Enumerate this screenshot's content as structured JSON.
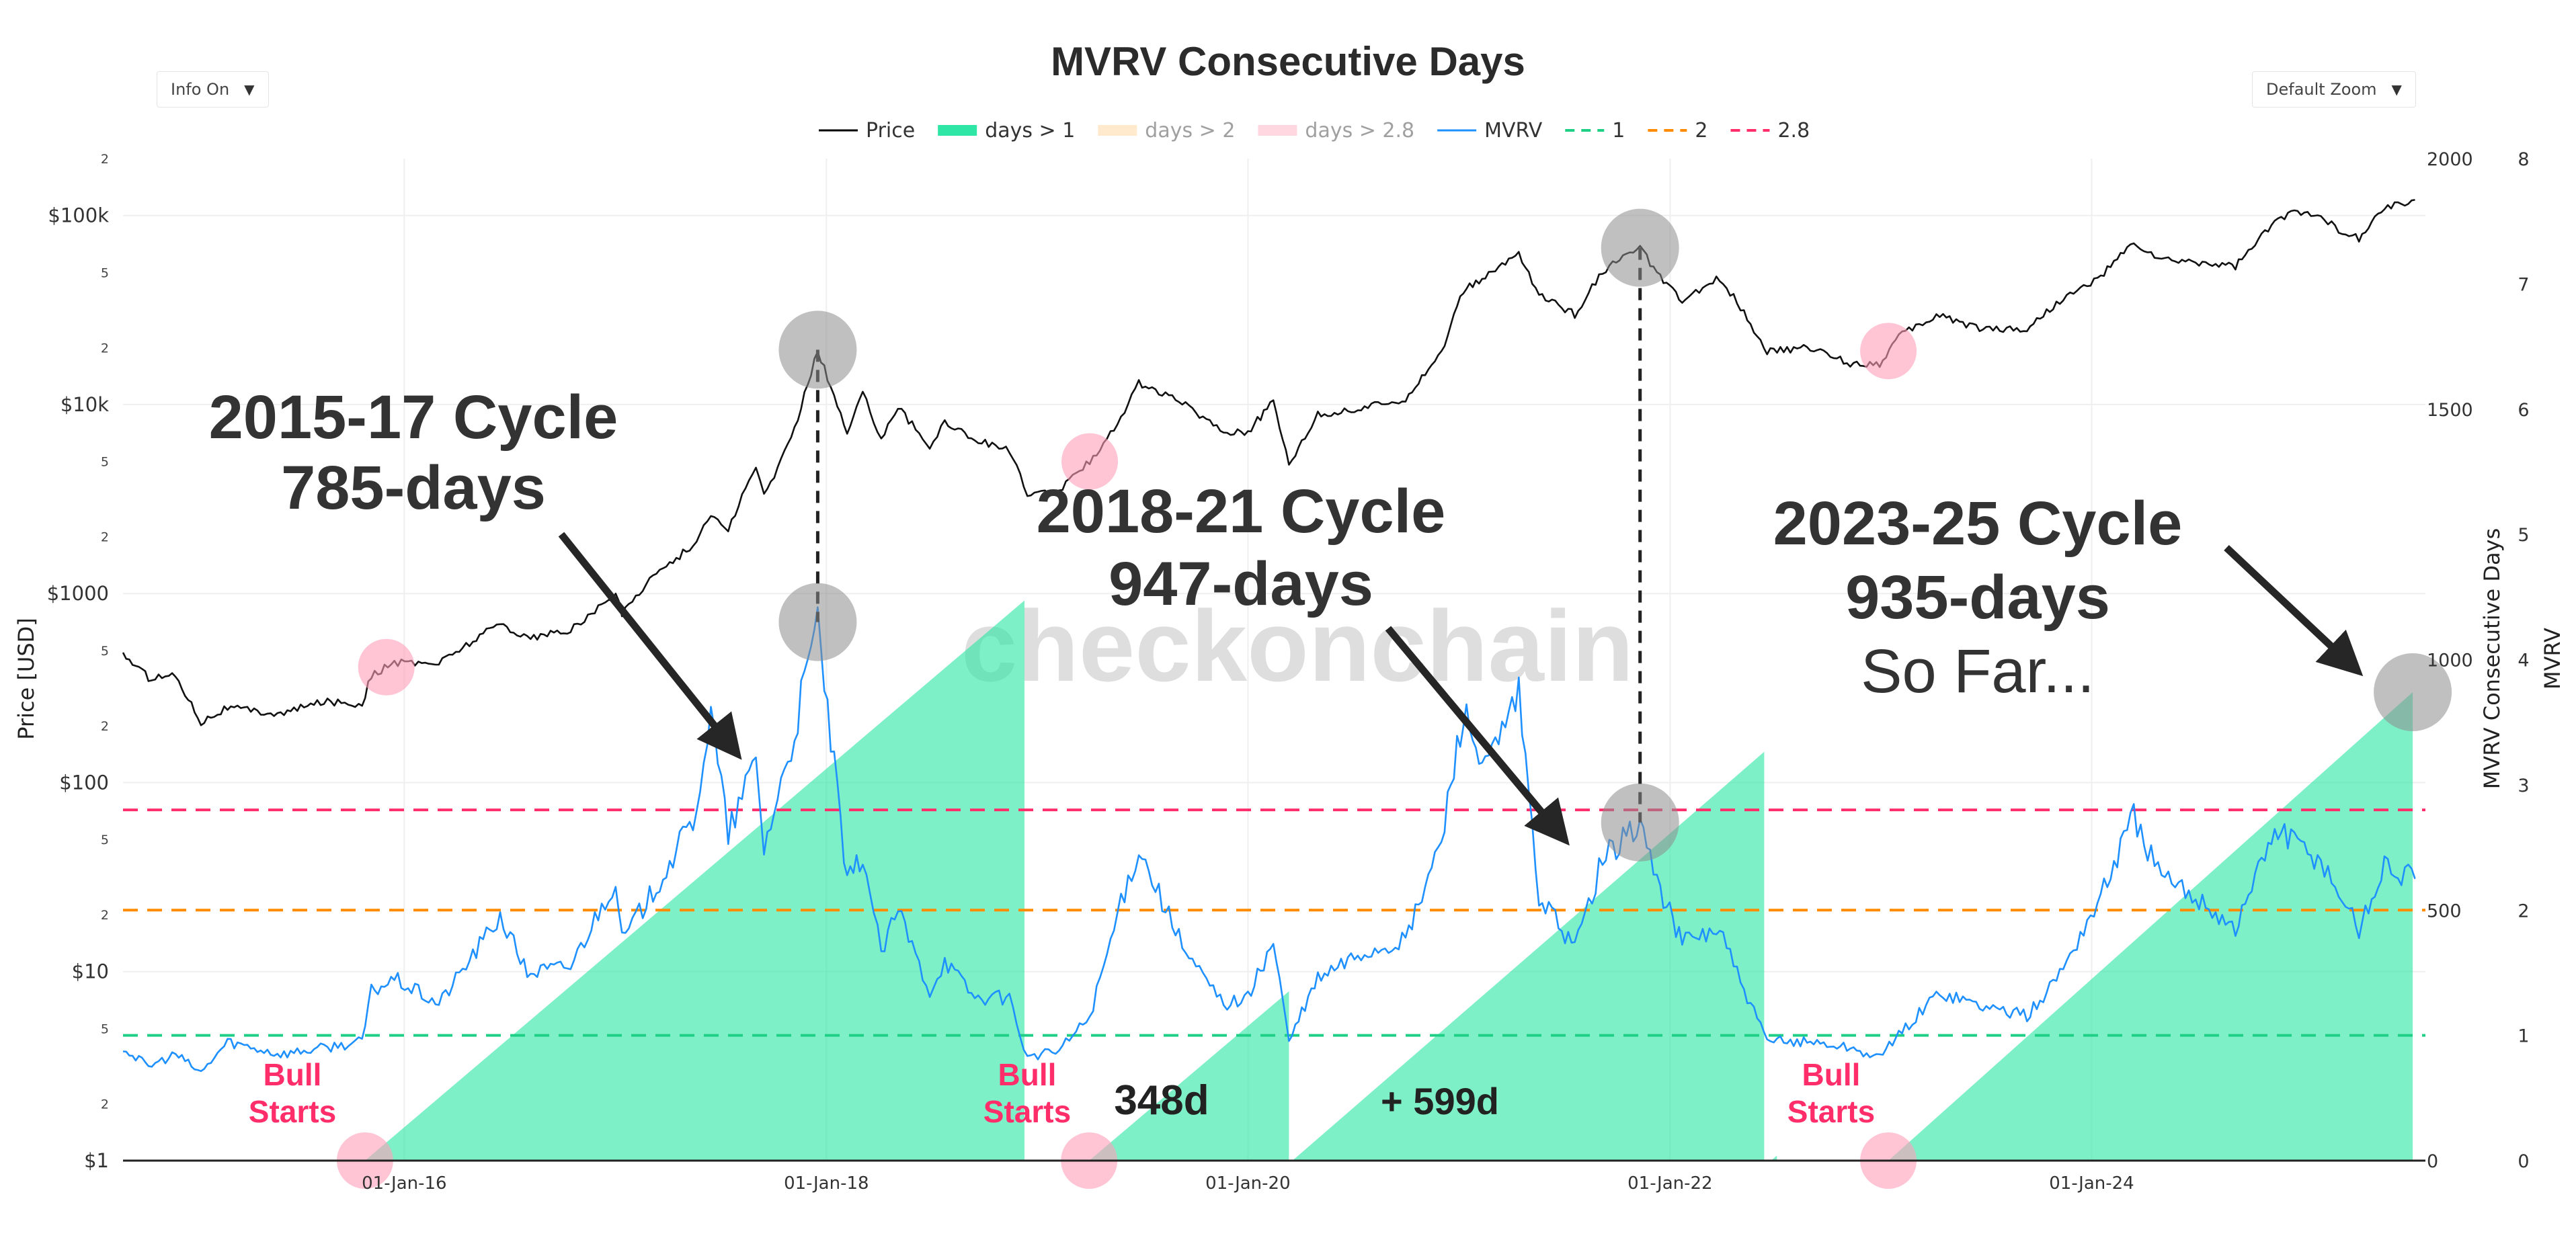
{
  "chart_data": {
    "type": "line",
    "title": "MVRV Consecutive Days",
    "controls": {
      "info": "Info On",
      "zoom": "Default Zoom"
    },
    "watermark": "checkonchain",
    "x_ticks": [
      "01-Jan-16",
      "01-Jan-18",
      "01-Jan-20",
      "01-Jan-22",
      "01-Jan-24"
    ],
    "x_range": [
      "2014-09-01",
      "2025-08-01"
    ],
    "legend": [
      {
        "label": "Price",
        "color": "#000000",
        "style": "line"
      },
      {
        "label": "days > 1",
        "color": "#2ee6a6",
        "style": "area"
      },
      {
        "label": "days > 2",
        "color": "#ffd8a6",
        "style": "area",
        "faded": true
      },
      {
        "label": "days > 2.8",
        "color": "#ffb6c9",
        "style": "area",
        "faded": true
      },
      {
        "label": "MVRV",
        "color": "#1e90ff",
        "style": "line"
      },
      {
        "label": "1",
        "color": "#1fcf86",
        "style": "dash"
      },
      {
        "label": "2",
        "color": "#ff8c00",
        "style": "dash"
      },
      {
        "label": "2.8",
        "color": "#ff2d6a",
        "style": "dash"
      }
    ],
    "y_price": {
      "label": "Price [USD]",
      "scale": "log",
      "range": [
        1,
        200000
      ],
      "major_ticks": [
        {
          "v": 1,
          "t": "$1"
        },
        {
          "v": 10,
          "t": "$10"
        },
        {
          "v": 100,
          "t": "$100"
        },
        {
          "v": 1000,
          "t": "$1000"
        },
        {
          "v": 10000,
          "t": "$10k"
        },
        {
          "v": 100000,
          "t": "$100k"
        }
      ],
      "minor_ticks": [
        {
          "v": 2,
          "t": "2"
        },
        {
          "v": 5,
          "t": "5"
        },
        {
          "v": 20,
          "t": "2"
        },
        {
          "v": 50,
          "t": "5"
        },
        {
          "v": 200,
          "t": "2"
        },
        {
          "v": 500,
          "t": "5"
        },
        {
          "v": 2000,
          "t": "2"
        },
        {
          "v": 5000,
          "t": "5"
        },
        {
          "v": 20000,
          "t": "2"
        },
        {
          "v": 50000,
          "t": "5"
        },
        {
          "v": 200000,
          "t": "2"
        }
      ]
    },
    "y_days": {
      "label": "MVRV Consecutive Days",
      "range": [
        0,
        2000
      ],
      "ticks": [
        {
          "v": 0,
          "t": "0"
        },
        {
          "v": 500,
          "t": "500"
        },
        {
          "v": 1000,
          "t": "1000"
        },
        {
          "v": 1500,
          "t": "1500"
        },
        {
          "v": 2000,
          "t": "2000"
        }
      ]
    },
    "y_mvrv": {
      "label": "MVRV",
      "range": [
        0,
        8
      ],
      "ticks": [
        {
          "v": 0,
          "t": "0"
        },
        {
          "v": 1,
          "t": "1"
        },
        {
          "v": 2,
          "t": "2"
        },
        {
          "v": 3,
          "t": "3"
        },
        {
          "v": 4,
          "t": "4"
        },
        {
          "v": 5,
          "t": "5"
        },
        {
          "v": 6,
          "t": "6"
        },
        {
          "v": 7,
          "t": "7"
        },
        {
          "v": 8,
          "t": "8"
        }
      ]
    },
    "thresholds": [
      {
        "value": 1,
        "color": "#1fcf86"
      },
      {
        "value": 2,
        "color": "#ff8c00"
      },
      {
        "value": 2.8,
        "color": "#ff2d6a"
      }
    ],
    "days_segments": [
      {
        "start": "2015-10-25",
        "end": "2018-12-10",
        "peak_days": 1118
      },
      {
        "start": "2019-04-01",
        "end": "2020-03-12",
        "peak_days": 338
      },
      {
        "start": "2020-03-18",
        "end": "2022-06-13",
        "peak_days": 816
      },
      {
        "start": "2022-06-25",
        "end": "2022-07-05",
        "peak_days": 10
      },
      {
        "start": "2023-01-14",
        "end": "2025-07-10",
        "peak_days": 935
      }
    ],
    "price_series": {
      "dates": [
        "2014-09-01",
        "2014-10-15",
        "2014-12-01",
        "2015-01-14",
        "2015-03-01",
        "2015-06-01",
        "2015-08-15",
        "2015-10-20",
        "2015-11-05",
        "2015-12-15",
        "2016-03-01",
        "2016-06-15",
        "2016-08-01",
        "2016-10-15",
        "2017-01-01",
        "2017-01-12",
        "2017-03-01",
        "2017-05-15",
        "2017-06-15",
        "2017-07-15",
        "2017-09-01",
        "2017-09-15",
        "2017-11-01",
        "2017-12-17",
        "2018-02-06",
        "2018-03-05",
        "2018-04-06",
        "2018-05-05",
        "2018-06-29",
        "2018-07-25",
        "2018-09-15",
        "2018-11-14",
        "2018-12-15",
        "2019-02-08",
        "2019-04-02",
        "2019-05-20",
        "2019-06-26",
        "2019-09-15",
        "2019-11-20",
        "2020-01-01",
        "2020-02-14",
        "2020-03-12",
        "2020-05-01",
        "2020-07-15",
        "2020-09-30",
        "2020-12-01",
        "2021-01-08",
        "2021-02-15",
        "2021-04-14",
        "2021-05-19",
        "2021-07-20",
        "2021-09-06",
        "2021-11-10",
        "2021-12-15",
        "2022-01-22",
        "2022-03-28",
        "2022-05-09",
        "2022-06-18",
        "2022-09-01",
        "2022-11-09",
        "2022-12-30",
        "2023-02-01",
        "2023-04-13",
        "2023-06-15",
        "2023-09-11",
        "2023-11-01",
        "2024-01-11",
        "2024-03-14",
        "2024-05-01",
        "2024-07-05",
        "2024-09-06",
        "2024-11-13",
        "2024-12-17",
        "2025-02-01",
        "2025-03-10",
        "2025-04-08",
        "2025-05-22",
        "2025-07-14"
      ],
      "values": [
        480,
        360,
        370,
        210,
        250,
        230,
        270,
        260,
        370,
        430,
        430,
        700,
        580,
        640,
        990,
        780,
        1200,
        1800,
        2600,
        2200,
        4700,
        3300,
        6500,
        19500,
        7000,
        11500,
        6700,
        9800,
        5900,
        8200,
        6500,
        5800,
        3300,
        3500,
        5000,
        8000,
        13000,
        10000,
        7200,
        7200,
        10300,
        4900,
        8800,
        9500,
        10800,
        19000,
        40000,
        47000,
        63500,
        38000,
        30000,
        51000,
        67500,
        47000,
        35000,
        47000,
        31000,
        19000,
        20000,
        16500,
        16500,
        23000,
        30000,
        25500,
        25000,
        34500,
        46000,
        71500,
        58000,
        56500,
        54000,
        92000,
        106000,
        102000,
        79000,
        76000,
        110000,
        121000
      ]
    },
    "mvrv_series": {
      "dates": [
        "2014-09-01",
        "2014-10-15",
        "2014-12-01",
        "2015-01-14",
        "2015-03-01",
        "2015-06-01",
        "2015-08-15",
        "2015-10-20",
        "2015-11-05",
        "2015-12-15",
        "2016-03-01",
        "2016-06-15",
        "2016-08-01",
        "2016-10-15",
        "2017-01-01",
        "2017-01-12",
        "2017-03-01",
        "2017-05-15",
        "2017-06-15",
        "2017-07-15",
        "2017-09-01",
        "2017-09-15",
        "2017-11-01",
        "2017-12-17",
        "2018-02-06",
        "2018-03-05",
        "2018-04-06",
        "2018-05-05",
        "2018-06-29",
        "2018-07-25",
        "2018-09-15",
        "2018-11-14",
        "2018-12-15",
        "2019-02-08",
        "2019-04-02",
        "2019-05-20",
        "2019-06-26",
        "2019-09-15",
        "2019-11-20",
        "2020-01-01",
        "2020-02-14",
        "2020-03-12",
        "2020-05-01",
        "2020-07-15",
        "2020-09-30",
        "2020-12-01",
        "2021-01-08",
        "2021-02-15",
        "2021-04-14",
        "2021-05-19",
        "2021-07-20",
        "2021-09-06",
        "2021-11-10",
        "2021-12-15",
        "2022-01-22",
        "2022-03-28",
        "2022-05-09",
        "2022-06-18",
        "2022-09-01",
        "2022-11-09",
        "2022-12-30",
        "2023-02-01",
        "2023-04-13",
        "2023-06-15",
        "2023-09-11",
        "2023-11-01",
        "2024-01-11",
        "2024-03-14",
        "2024-05-01",
        "2024-07-05",
        "2024-09-06",
        "2024-11-13",
        "2024-12-17",
        "2025-02-01",
        "2025-03-10",
        "2025-04-08",
        "2025-05-22",
        "2025-07-14"
      ],
      "values": [
        0.9,
        0.75,
        0.85,
        0.7,
        0.95,
        0.85,
        0.9,
        0.95,
        1.35,
        1.45,
        1.25,
        1.95,
        1.5,
        1.55,
        2.25,
        1.75,
        2.1,
        2.7,
        3.55,
        2.6,
        3.2,
        2.5,
        3.3,
        4.3,
        2.2,
        2.45,
        1.65,
        2.0,
        1.35,
        1.6,
        1.3,
        1.3,
        0.82,
        0.88,
        1.15,
        1.95,
        2.5,
        1.65,
        1.25,
        1.3,
        1.75,
        0.95,
        1.45,
        1.65,
        1.75,
        2.55,
        3.6,
        3.1,
        3.7,
        2.1,
        1.7,
        2.4,
        2.7,
        2.15,
        1.75,
        1.85,
        1.35,
        0.95,
        0.95,
        0.9,
        0.82,
        1.0,
        1.35,
        1.25,
        1.15,
        1.45,
        2.05,
        2.75,
        2.25,
        2.1,
        1.85,
        2.65,
        2.55,
        2.4,
        2.1,
        1.85,
        2.35,
        2.25
      ]
    },
    "highlight_circles": [
      {
        "date": "2015-12-01",
        "on": "price",
        "color": "pink"
      },
      {
        "date": "2017-12-17",
        "on": "price",
        "color": "gray"
      },
      {
        "date": "2019-04-02",
        "on": "price",
        "color": "pink"
      },
      {
        "date": "2021-11-10",
        "on": "price",
        "color": "gray"
      },
      {
        "date": "2023-01-14",
        "on": "price",
        "color": "pink"
      },
      {
        "date": "2017-12-17",
        "on": "mvrv",
        "color": "gray"
      },
      {
        "date": "2021-11-10",
        "on": "mvrv",
        "color": "gray"
      },
      {
        "date": "2015-10-25",
        "on": "axis",
        "color": "pink"
      },
      {
        "date": "2019-04-01",
        "on": "axis",
        "color": "pink"
      },
      {
        "date": "2023-01-14",
        "on": "axis",
        "color": "pink"
      },
      {
        "date": "2025-07-10",
        "on": "days",
        "days": 935,
        "color": "gray"
      }
    ],
    "vertical_markers": [
      "2017-12-17",
      "2021-11-10"
    ],
    "annotations": {
      "cycle1": [
        "2015-17 Cycle",
        "785-days"
      ],
      "cycle2": [
        "2018-21 Cycle",
        "947-days"
      ],
      "cycle3": [
        "2023-25 Cycle",
        "935-days",
        "So Far..."
      ],
      "bull_starts": [
        "Bull",
        "Starts"
      ],
      "d348": "348d",
      "d599": "+ 599d"
    }
  }
}
